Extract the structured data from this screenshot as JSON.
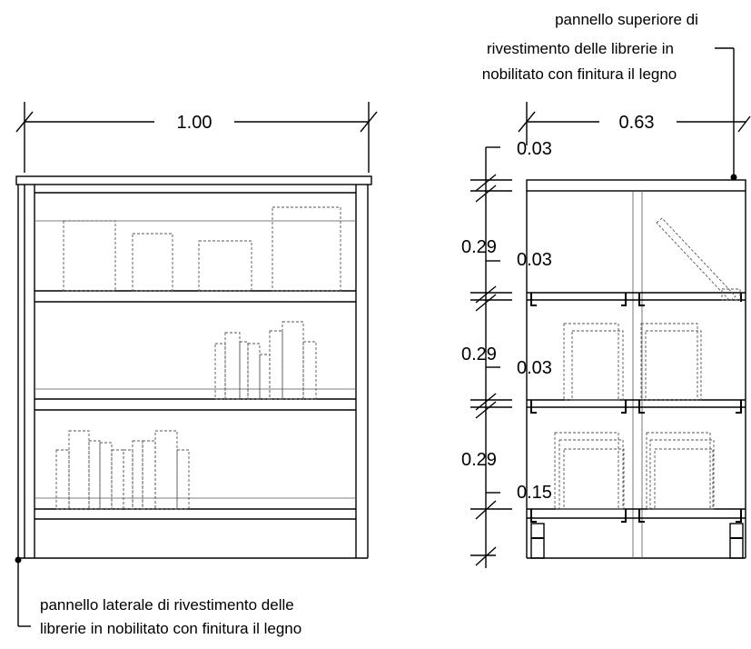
{
  "front_view": {
    "width_label": "1.00"
  },
  "side_view": {
    "depth_label": "0.63",
    "heights": {
      "top_gap_1": "0.03",
      "shelf_1": "0.29",
      "gap_2": "0.03",
      "shelf_2": "0.29",
      "gap_3": "0.03",
      "shelf_3": "0.29",
      "base": "0.15"
    }
  },
  "notes": {
    "top_panel": {
      "line1": "pannello superiore di",
      "line2": "rivestimento delle librerie in",
      "line3": "nobilitato con finitura il legno"
    },
    "side_panel": {
      "line1": "pannello laterale di rivestimento delle",
      "line2": "librerie in nobilitato con finitura il legno"
    }
  }
}
